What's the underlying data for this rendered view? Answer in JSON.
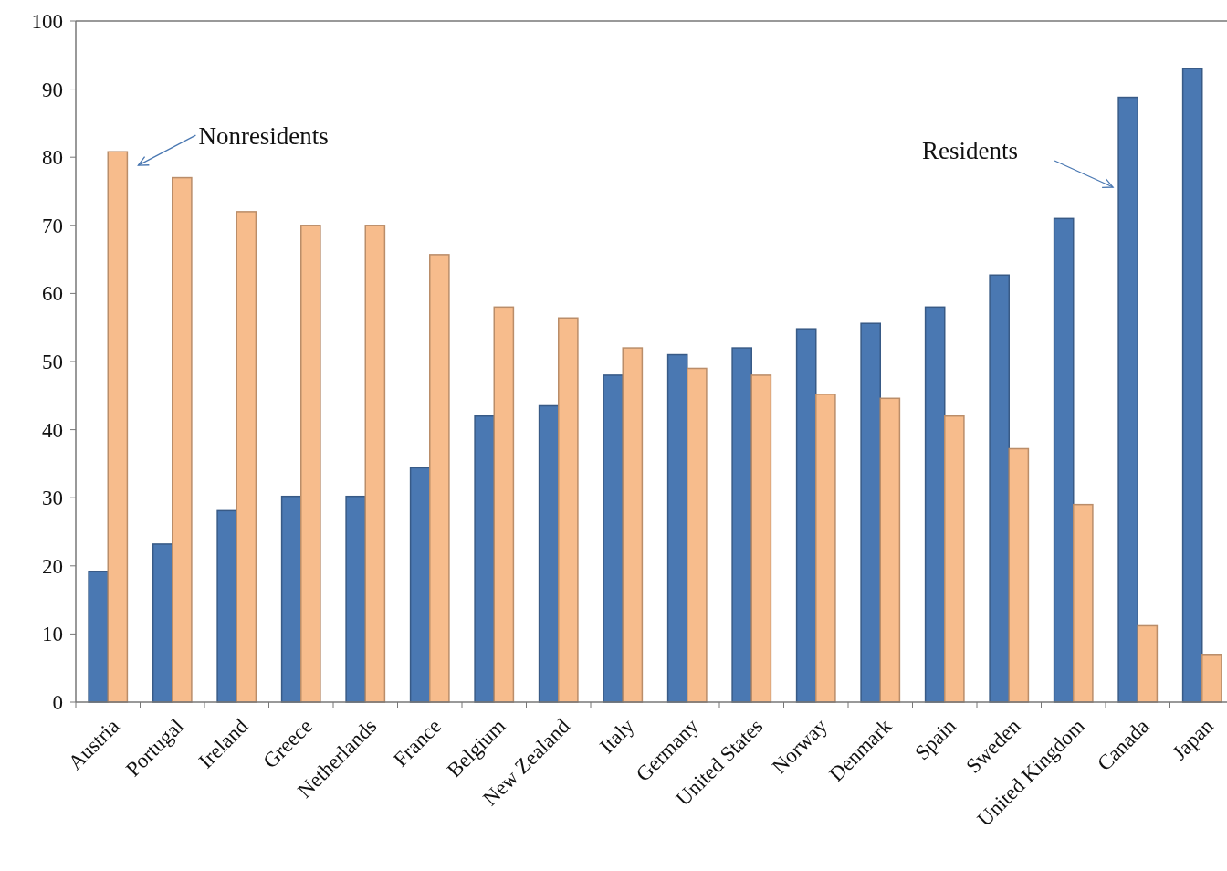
{
  "chart_data": {
    "type": "bar",
    "categories": [
      "Austria",
      "Portugal",
      "Ireland",
      "Greece",
      "Netherlands",
      "France",
      "Belgium",
      "New Zealand",
      "Italy",
      "Germany",
      "United States",
      "Norway",
      "Denmark",
      "Spain",
      "Sweden",
      "United Kingdom",
      "Canada",
      "Japan"
    ],
    "series": [
      {
        "color": "#4a78b2",
        "values": [
          19.2,
          23.2,
          28.1,
          30.2,
          30.2,
          34.4,
          42,
          43.5,
          48,
          51,
          52,
          54.8,
          55.6,
          58,
          62.7,
          71,
          88.8,
          93
        ]
      },
      {
        "color": "#f7bc8c",
        "values": [
          80.8,
          77,
          72,
          70,
          70,
          65.7,
          58,
          56.4,
          52,
          49,
          48,
          45.2,
          44.6,
          42,
          37.2,
          29,
          11.2,
          7
        ]
      }
    ],
    "ylim": [
      0,
      100
    ],
    "yticks": [
      0,
      10,
      20,
      30,
      40,
      50,
      60,
      70,
      80,
      90,
      100
    ],
    "grid": false,
    "annotations": [
      "Nonresidents",
      "Residents"
    ]
  }
}
